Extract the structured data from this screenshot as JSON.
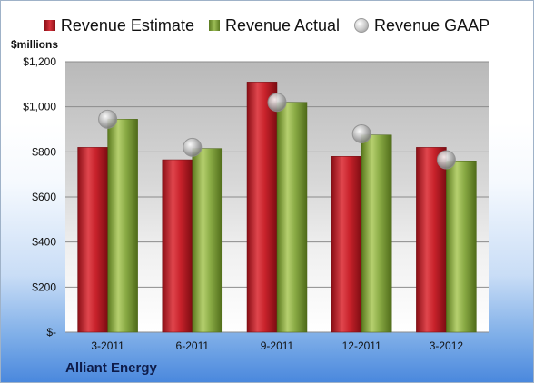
{
  "legend": {
    "estimate": "Revenue Estimate",
    "actual": "Revenue Actual",
    "gaap": "Revenue GAAP"
  },
  "unit_label": "$millions",
  "company": "Alliant Energy",
  "colors": {
    "estimate": "#c8222b",
    "actual": "#8aab45",
    "gaap": "#c8c8c8"
  },
  "chart_data": {
    "type": "bar",
    "categories": [
      "3-2011",
      "6-2011",
      "9-2011",
      "12-2011",
      "3-2012"
    ],
    "series": [
      {
        "name": "Revenue Estimate",
        "values": [
          820,
          765,
          1110,
          780,
          820
        ]
      },
      {
        "name": "Revenue Actual",
        "values": [
          945,
          815,
          1020,
          875,
          760
        ]
      },
      {
        "name": "Revenue GAAP",
        "values": [
          945,
          820,
          1020,
          880,
          765
        ]
      }
    ],
    "ylabel": "$millions",
    "ylim": [
      0,
      1200
    ],
    "yticks": [
      {
        "value": 0,
        "label": "$-"
      },
      {
        "value": 200,
        "label": "$200"
      },
      {
        "value": 400,
        "label": "$400"
      },
      {
        "value": 600,
        "label": "$600"
      },
      {
        "value": 800,
        "label": "$800"
      },
      {
        "value": 1000,
        "label": "$1,000"
      },
      {
        "value": 1200,
        "label": "$1,200"
      }
    ],
    "grid": true,
    "legend_position": "top"
  }
}
